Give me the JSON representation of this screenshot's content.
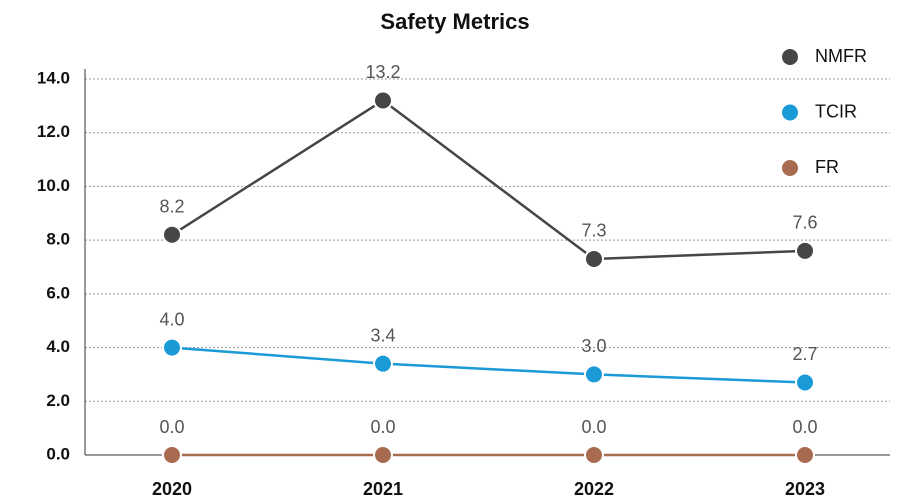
{
  "chart_data": {
    "type": "line",
    "title": "Safety Metrics",
    "categories": [
      "2020",
      "2021",
      "2022",
      "2023"
    ],
    "series": [
      {
        "name": "NMFR",
        "color": "#464646",
        "values": [
          8.2,
          13.2,
          7.3,
          7.6
        ],
        "value_labels": [
          "8.2",
          "13.2",
          "7.3",
          "7.6"
        ]
      },
      {
        "name": "TCIR",
        "color": "#1a9ad6",
        "values": [
          4.0,
          3.4,
          3.0,
          2.7
        ],
        "value_labels": [
          "4.0",
          "3.4",
          "3.0",
          "2.7"
        ]
      },
      {
        "name": "FR",
        "color": "#a86b50",
        "values": [
          0,
          0,
          0,
          0
        ],
        "value_labels": [
          "0.0",
          "0.0",
          "0.0",
          "0.0"
        ]
      }
    ],
    "ylim": [
      0,
      14
    ],
    "yticks": [
      {
        "value": 0,
        "label": "0.0"
      },
      {
        "value": 2,
        "label": "2.0"
      },
      {
        "value": 4,
        "label": "4.0"
      },
      {
        "value": 6,
        "label": "6.0"
      },
      {
        "value": 8,
        "label": "8.0"
      },
      {
        "value": 10,
        "label": "10.0"
      },
      {
        "value": 12,
        "label": "12.0"
      },
      {
        "value": 14,
        "label": "14.0"
      }
    ],
    "grid": true,
    "legend": "top-right"
  }
}
